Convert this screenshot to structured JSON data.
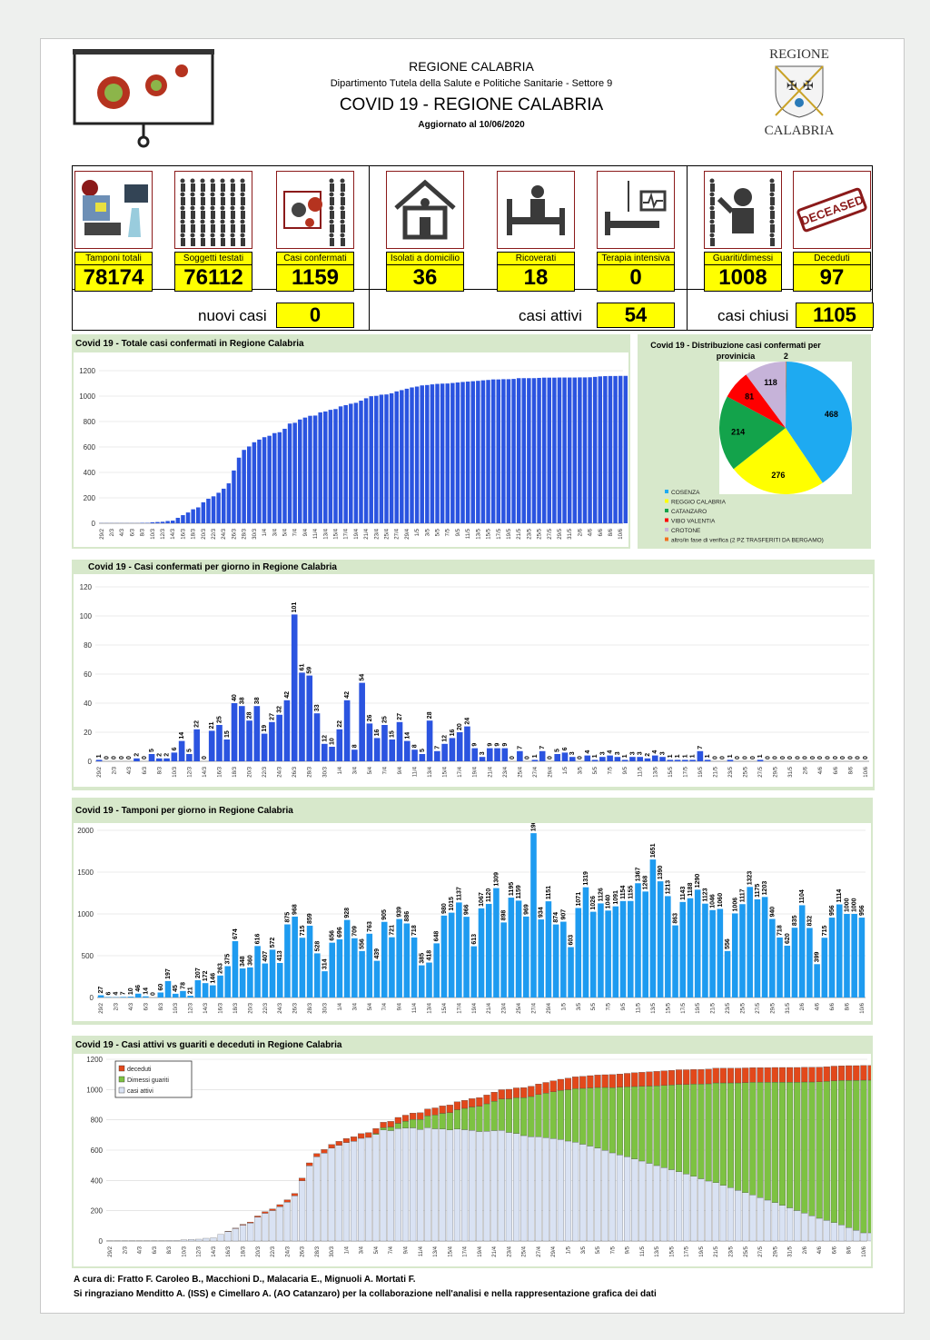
{
  "header": {
    "region": "REGIONE CALABRIA",
    "department": "Dipartimento Tutela della Salute e Politiche Sanitarie - Settore 9",
    "title": "COVID 19 - REGIONE CALABRIA",
    "updated": "Aggiornato al  10/06/2020",
    "crest_top": "REGIONE",
    "crest_bottom": "CALABRIA"
  },
  "colors": {
    "blue_dark": "#2b54e0",
    "blue_light": "#1e9bf0",
    "yellow": "#ffff00",
    "green_panel": "#d7e8cb",
    "deceased": "#e2481b",
    "recovered": "#7dc242",
    "active": "#d9e2f3",
    "border_red": "#8b1a1a"
  },
  "cards": [
    {
      "icon": "lab-computer-icon",
      "label": "Tamponi totali",
      "value": "78174"
    },
    {
      "icon": "people-grid-icon",
      "label": "Soggetti testati",
      "value": "76112"
    },
    {
      "icon": "virus-people-icon",
      "label": "Casi confermati",
      "value": "1159"
    },
    {
      "icon": "house-icon",
      "label": "Isolati a domicilio",
      "value": "36"
    },
    {
      "icon": "hospital-bed-icon",
      "label": "Ricoverati",
      "value": "18"
    },
    {
      "icon": "intensive-care-icon",
      "label": "Terapia intensiva",
      "value": "0"
    },
    {
      "icon": "recovered-person-icon",
      "label": "Guariti/dimessi",
      "value": "1008"
    },
    {
      "icon": "deceased-stamp-icon",
      "label": "Deceduti",
      "value": "97"
    }
  ],
  "deceased_stamp": "DECEASED",
  "summary": {
    "new_label": "nuovi casi",
    "new_value": "0",
    "active_label": "casi attivi",
    "active_value": "54",
    "closed_label": "casi chiusi",
    "closed_value": "1105"
  },
  "chart_data": [
    {
      "type": "bar",
      "title": "Covid 19 - Totale casi confermati in Regione Calabria",
      "ylim": [
        0,
        1200
      ],
      "yticks": [
        0,
        200,
        400,
        600,
        800,
        1000,
        1200
      ],
      "x_start": "29/2",
      "days": 103,
      "values": [
        1,
        1,
        1,
        1,
        1,
        1,
        1,
        1,
        3,
        3,
        8,
        10,
        12,
        18,
        21,
        43,
        64,
        85,
        110,
        125,
        165,
        193,
        212,
        240,
        272,
        314,
        415,
        516,
        577,
        604,
        637,
        658,
        677,
        688,
        709,
        716,
        743,
        784,
        790,
        816,
        831,
        845,
        847,
        872,
        879,
        892,
        898,
        919,
        929,
        940,
        947,
        964,
        983,
        999,
        1002,
        1011,
        1013,
        1022,
        1037,
        1047,
        1058,
        1068,
        1075,
        1084,
        1087,
        1092,
        1096,
        1098,
        1099,
        1103,
        1107,
        1111,
        1114,
        1117,
        1120,
        1124,
        1127,
        1131,
        1131,
        1133,
        1133,
        1135,
        1141,
        1141,
        1141,
        1141,
        1143,
        1145,
        1145,
        1145,
        1146,
        1146,
        1146,
        1146,
        1147,
        1147,
        1148,
        1151,
        1155,
        1157,
        1158,
        1158,
        1159,
        1159
      ],
      "ticks": [
        "29/2",
        "2/3",
        "4/3",
        "6/3",
        "8/3",
        "10/3",
        "12/3",
        "14/3",
        "16/3",
        "18/3",
        "20/3",
        "22/3",
        "24/3",
        "26/3",
        "28/3",
        "30/3",
        "1/4",
        "3/4",
        "5/4",
        "7/4",
        "9/4",
        "11/4",
        "13/4",
        "15/4",
        "17/4",
        "19/4",
        "21/4",
        "23/4",
        "25/4",
        "27/4",
        "29/4",
        "1/5",
        "3/5",
        "5/5",
        "7/5",
        "9/5",
        "11/5",
        "13/5",
        "15/5",
        "17/5",
        "19/5",
        "21/5",
        "23/5",
        "25/5",
        "27/5",
        "29/5",
        "31/5",
        "2/6",
        "4/6",
        "6/6",
        "8/6",
        "10/6"
      ]
    },
    {
      "type": "pie",
      "title": "Covid 19 - Distribuzione casi confermati per provinicia",
      "labels": [
        "COSENZA",
        "REGGIO CALABRIA",
        "CATANZARO",
        "VIBO VALENTIA",
        "CROTONE",
        "altro/in fase di verifica (2 PZ TRASFERITI DA BERGAMO)"
      ],
      "values": [
        468,
        276,
        214,
        81,
        118,
        2
      ],
      "colors": [
        "#1eaaf1",
        "#ffff00",
        "#13a34b",
        "#ff0000",
        "#c6b3d9",
        "#f07020"
      ]
    },
    {
      "type": "bar",
      "title": "Covid 19 - Casi confermati per giorno in Regione Calabria",
      "ylim": [
        0,
        120
      ],
      "yticks": [
        0,
        20,
        40,
        60,
        80,
        100,
        120
      ],
      "x_start": "29/2",
      "days": 103,
      "values": [
        1,
        0,
        0,
        0,
        0,
        2,
        0,
        5,
        2,
        2,
        6,
        14,
        5,
        22,
        0,
        21,
        25,
        15,
        40,
        38,
        28,
        38,
        19,
        27,
        32,
        42,
        101,
        61,
        59,
        33,
        12,
        10,
        22,
        42,
        8,
        54,
        26,
        16,
        25,
        15,
        27,
        14,
        8,
        5,
        28,
        7,
        12,
        16,
        20,
        24,
        9,
        3,
        9,
        9,
        9,
        0,
        7,
        0,
        1,
        7,
        0,
        5,
        6,
        3,
        0,
        4,
        1,
        3,
        4,
        3,
        1,
        3,
        3,
        2,
        4,
        3,
        1,
        1,
        1,
        1,
        7,
        1,
        0,
        0,
        1,
        0,
        0,
        0,
        1,
        0,
        0,
        0,
        0,
        0,
        0,
        0,
        0,
        0,
        0,
        0,
        0,
        0,
        0
      ],
      "ticks": [
        "29/2",
        "2/3",
        "4/3",
        "6/3",
        "8/3",
        "10/3",
        "12/3",
        "14/3",
        "16/3",
        "18/3",
        "20/3",
        "22/3",
        "24/3",
        "26/3",
        "28/3",
        "30/3",
        "1/4",
        "3/4",
        "5/4",
        "7/4",
        "9/4",
        "11/4",
        "13/4",
        "15/4",
        "17/4",
        "19/4",
        "21/4",
        "23/4",
        "25/4",
        "27/4",
        "29/4",
        "1/5",
        "3/5",
        "5/5",
        "7/5",
        "9/5",
        "11/5",
        "13/5",
        "15/5",
        "17/5",
        "19/5",
        "21/5",
        "23/5",
        "25/5",
        "27/5",
        "29/5",
        "31/5",
        "2/6",
        "4/6",
        "6/6",
        "8/6",
        "10/6"
      ]
    },
    {
      "type": "bar",
      "title": "Covid 19 - Tamponi per giorno in Regione Calabria",
      "ylim": [
        0,
        2000
      ],
      "yticks": [
        0,
        500,
        1000,
        1500,
        2000
      ],
      "x_start": "29/2",
      "days": 103,
      "values": [
        27,
        6,
        4,
        7,
        10,
        46,
        14,
        0,
        60,
        197,
        45,
        78,
        21,
        207,
        172,
        146,
        263,
        375,
        674,
        348,
        360,
        616,
        407,
        572,
        413,
        875,
        968,
        715,
        859,
        528,
        314,
        656,
        696,
        928,
        709,
        556,
        763,
        439,
        905,
        721,
        939,
        886,
        718,
        385,
        418,
        648,
        980,
        1015,
        1137,
        966,
        613,
        1067,
        1120,
        1309,
        898,
        1195,
        1159,
        969,
        1966,
        934,
        1151,
        874,
        907,
        603,
        1071,
        1319,
        1026,
        1126,
        1040,
        1091,
        1154,
        1155,
        1367,
        1268,
        1651,
        1390,
        1213,
        863,
        1143,
        1188,
        1290,
        1123,
        1046,
        1060,
        556,
        1006,
        1117,
        1323,
        1175,
        1203,
        940,
        718,
        620,
        835,
        1104,
        832,
        399,
        715,
        956,
        1114,
        1000,
        1000,
        956
      ],
      "ticks": [
        "29/2",
        "2/3",
        "4/3",
        "6/3",
        "8/3",
        "10/3",
        "12/3",
        "14/3",
        "16/3",
        "18/3",
        "20/3",
        "22/3",
        "24/3",
        "26/3",
        "28/3",
        "30/3",
        "1/4",
        "3/4",
        "5/4",
        "7/4",
        "9/4",
        "11/4",
        "13/4",
        "15/4",
        "17/4",
        "19/4",
        "21/4",
        "23/4",
        "25/4",
        "27/4",
        "29/4",
        "1/5",
        "3/5",
        "5/5",
        "7/5",
        "9/5",
        "11/5",
        "13/5",
        "15/5",
        "17/5",
        "19/5",
        "21/5",
        "23/5",
        "25/5",
        "27/5",
        "29/5",
        "31/5",
        "2/6",
        "4/6",
        "6/6",
        "8/6",
        "10/6"
      ]
    },
    {
      "type": "bar",
      "stacked": true,
      "title": "Covid 19 - Casi attivi vs guariti e deceduti in Regione Calabria",
      "ylim": [
        0,
        1200
      ],
      "yticks": [
        0,
        200,
        400,
        600,
        800,
        1000,
        1200
      ],
      "legend": [
        "deceduti",
        "Dimessi guariti",
        "casi attivi"
      ],
      "x_start": "29/2",
      "days": 103,
      "recovered_start": [
        0,
        0,
        0,
        0,
        0,
        0,
        0,
        0,
        0,
        0,
        0,
        0,
        0,
        0,
        0,
        0,
        0,
        0,
        0,
        0,
        0,
        0,
        0,
        0,
        0,
        0,
        0,
        0,
        0,
        0,
        0,
        0,
        0,
        0,
        0,
        0,
        0,
        0,
        0,
        0,
        0,
        0,
        0,
        0,
        0,
        0,
        0,
        0,
        0,
        0,
        0,
        0,
        0,
        0,
        0,
        0,
        0,
        0,
        0,
        0,
        0,
        0,
        0,
        0,
        0,
        0,
        0,
        0,
        0,
        0,
        0,
        0,
        0,
        0,
        0,
        0,
        0,
        0,
        0,
        0,
        0,
        0,
        0,
        0,
        0,
        0,
        0,
        0,
        0,
        0,
        0,
        0,
        0,
        0,
        0,
        0,
        0,
        0,
        0,
        0,
        0,
        0,
        0
      ],
      "ticks": [
        "29/2",
        "2/3",
        "4/3",
        "6/3",
        "8/3",
        "10/3",
        "12/3",
        "14/3",
        "16/3",
        "18/3",
        "20/3",
        "22/3",
        "24/3",
        "26/3",
        "28/3",
        "30/3",
        "1/4",
        "3/4",
        "5/4",
        "7/4",
        "9/4",
        "11/4",
        "13/4",
        "15/4",
        "17/4",
        "19/4",
        "21/4",
        "23/4",
        "25/4",
        "27/4",
        "29/4",
        "1/5",
        "3/5",
        "5/5",
        "7/5",
        "9/5",
        "11/5",
        "13/5",
        "15/5",
        "17/5",
        "19/5",
        "21/5",
        "23/5",
        "25/5",
        "27/5",
        "29/5",
        "31/5",
        "2/6",
        "4/6",
        "6/6",
        "8/6",
        "10/6"
      ]
    }
  ],
  "footer": {
    "line1": "A cura di: Fratto F. Caroleo B., Macchioni D., Malacaria E., Mignuoli A. Mortati F.",
    "line2": "Si ringraziano Menditto A. (ISS) e Cimellaro A. (AO Catanzaro) per la collaborazione nell'analisi e nella rappresentazione grafica dei dati"
  }
}
